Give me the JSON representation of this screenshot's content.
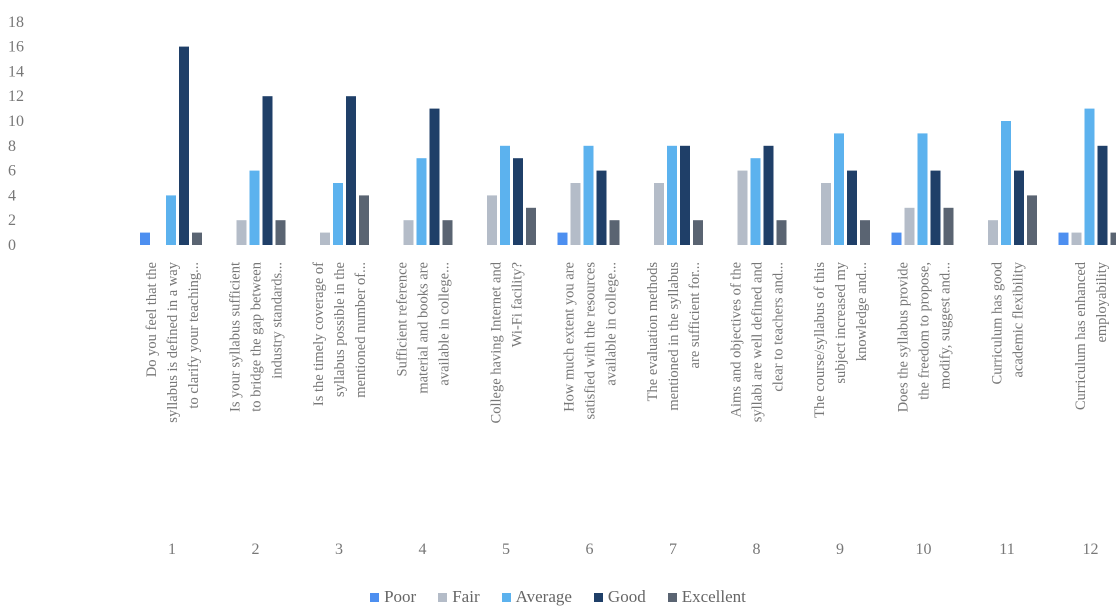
{
  "chart_data": {
    "type": "bar",
    "ylim": [
      0,
      18
    ],
    "yticks": [
      0,
      2,
      4,
      6,
      8,
      10,
      12,
      14,
      16,
      18
    ],
    "grid": false,
    "legend_position": "bottom",
    "categories": [
      "1",
      "2",
      "3",
      "4",
      "5",
      "6",
      "7",
      "8",
      "9",
      "10",
      "11",
      "12"
    ],
    "category_labels": [
      [
        "Do you feel that the",
        "syllabus is defined in a way",
        "to clarify your teaching..."
      ],
      [
        "Is your syllabus sufficient",
        "to bridge the gap between",
        "industry standards..."
      ],
      [
        "Is the timely coverage of",
        "syllabus possible in the",
        "mentioned number of..."
      ],
      [
        "Sufficient reference",
        "material and books are",
        "available in college..."
      ],
      [
        "College having Internet and",
        "Wi-Fi facility?"
      ],
      [
        "How much extent you are",
        "satisfied with the resources",
        "available in college..."
      ],
      [
        "The evaluation methods",
        "mentioned in the syllabus",
        "are sufficient for..."
      ],
      [
        "Aims and objectives of the",
        "syllabi are well defined and",
        "clear to teachers and..."
      ],
      [
        "The course/syllabus of this",
        "subject increased my",
        "knowledge and..."
      ],
      [
        "Does the syllabus provide",
        "the freedom to propose,",
        "modify, suggest and..."
      ],
      [
        "Curriculum has good",
        "academic flexibility"
      ],
      [
        "Curriculum has enhanced",
        "employability"
      ]
    ],
    "series": [
      {
        "name": "Poor",
        "color": "#4d8ff0",
        "values": [
          1,
          0,
          0,
          0,
          0,
          1,
          0,
          0,
          0,
          1,
          0,
          1
        ]
      },
      {
        "name": "Fair",
        "color": "#b4bcc8",
        "values": [
          0,
          2,
          1,
          2,
          4,
          5,
          5,
          6,
          5,
          3,
          2,
          1
        ]
      },
      {
        "name": "Average",
        "color": "#5cb2ee",
        "values": [
          4,
          6,
          5,
          7,
          8,
          8,
          8,
          7,
          9,
          9,
          10,
          11
        ]
      },
      {
        "name": "Good",
        "color": "#1f3f68",
        "values": [
          16,
          12,
          12,
          11,
          7,
          6,
          8,
          8,
          6,
          6,
          6,
          8
        ]
      },
      {
        "name": "Excellent",
        "color": "#5a6472",
        "values": [
          1,
          2,
          4,
          2,
          3,
          2,
          2,
          2,
          2,
          3,
          4,
          1
        ]
      }
    ]
  }
}
